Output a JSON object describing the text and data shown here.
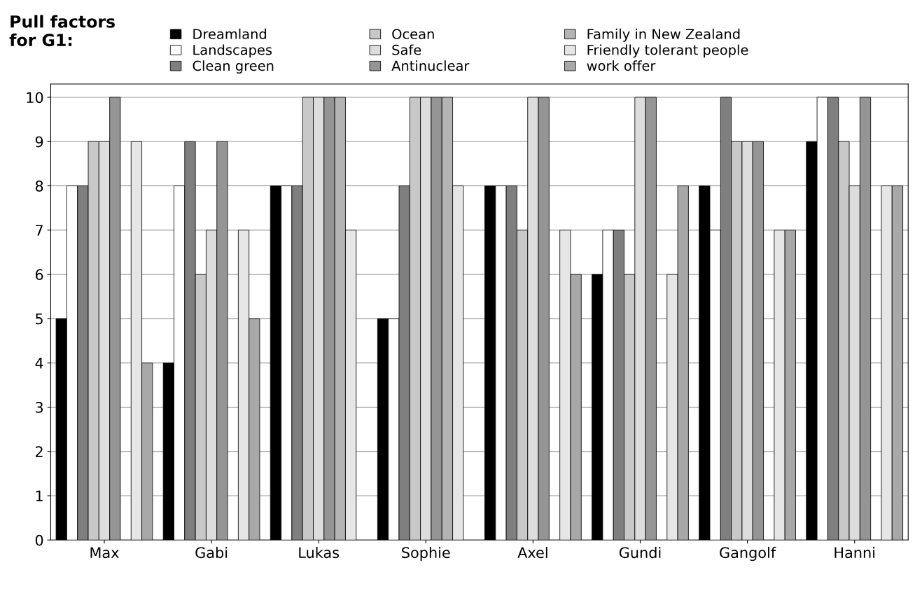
{
  "chart_data": {
    "type": "bar",
    "title": "Pull factors\nfor G1:",
    "categories": [
      "Max",
      "Gabi",
      "Lukas",
      "Sophie",
      "Axel",
      "Gundi",
      "Gangolf",
      "Hanni"
    ],
    "series": [
      {
        "name": "Dreamland",
        "color": "#000000",
        "values": [
          5,
          4,
          8,
          5,
          8,
          6,
          8,
          9
        ]
      },
      {
        "name": "Landscapes",
        "color": "#ffffff",
        "values": [
          8,
          8,
          8,
          5,
          8,
          7,
          7,
          10
        ]
      },
      {
        "name": "Clean green",
        "color": "#7f7f7f",
        "values": [
          8,
          9,
          8,
          8,
          8,
          7,
          10,
          10
        ]
      },
      {
        "name": "Ocean",
        "color": "#c8c8c8",
        "values": [
          9,
          6,
          10,
          10,
          7,
          6,
          9,
          9
        ]
      },
      {
        "name": "Safe",
        "color": "#dddddd",
        "values": [
          9,
          7,
          10,
          10,
          10,
          10,
          9,
          8
        ]
      },
      {
        "name": "Antinuclear",
        "color": "#959595",
        "values": [
          10,
          9,
          10,
          10,
          10,
          10,
          9,
          10
        ]
      },
      {
        "name": "Family in New Zealand",
        "color": "#b4b4b4",
        "values": [
          null,
          null,
          10,
          10,
          null,
          null,
          null,
          null
        ]
      },
      {
        "name": "Friendly tolerant people",
        "color": "#e6e6e6",
        "values": [
          9,
          7,
          7,
          8,
          7,
          6,
          7,
          8
        ]
      },
      {
        "name": "work offer",
        "color": "#a8a8a8",
        "values": [
          4,
          5,
          null,
          null,
          6,
          8,
          7,
          8
        ]
      }
    ],
    "ylim": [
      0,
      10.3
    ],
    "yticks": [
      0,
      1,
      2,
      3,
      4,
      5,
      6,
      7,
      8,
      9,
      10
    ],
    "grid": "y",
    "legend": "top"
  }
}
